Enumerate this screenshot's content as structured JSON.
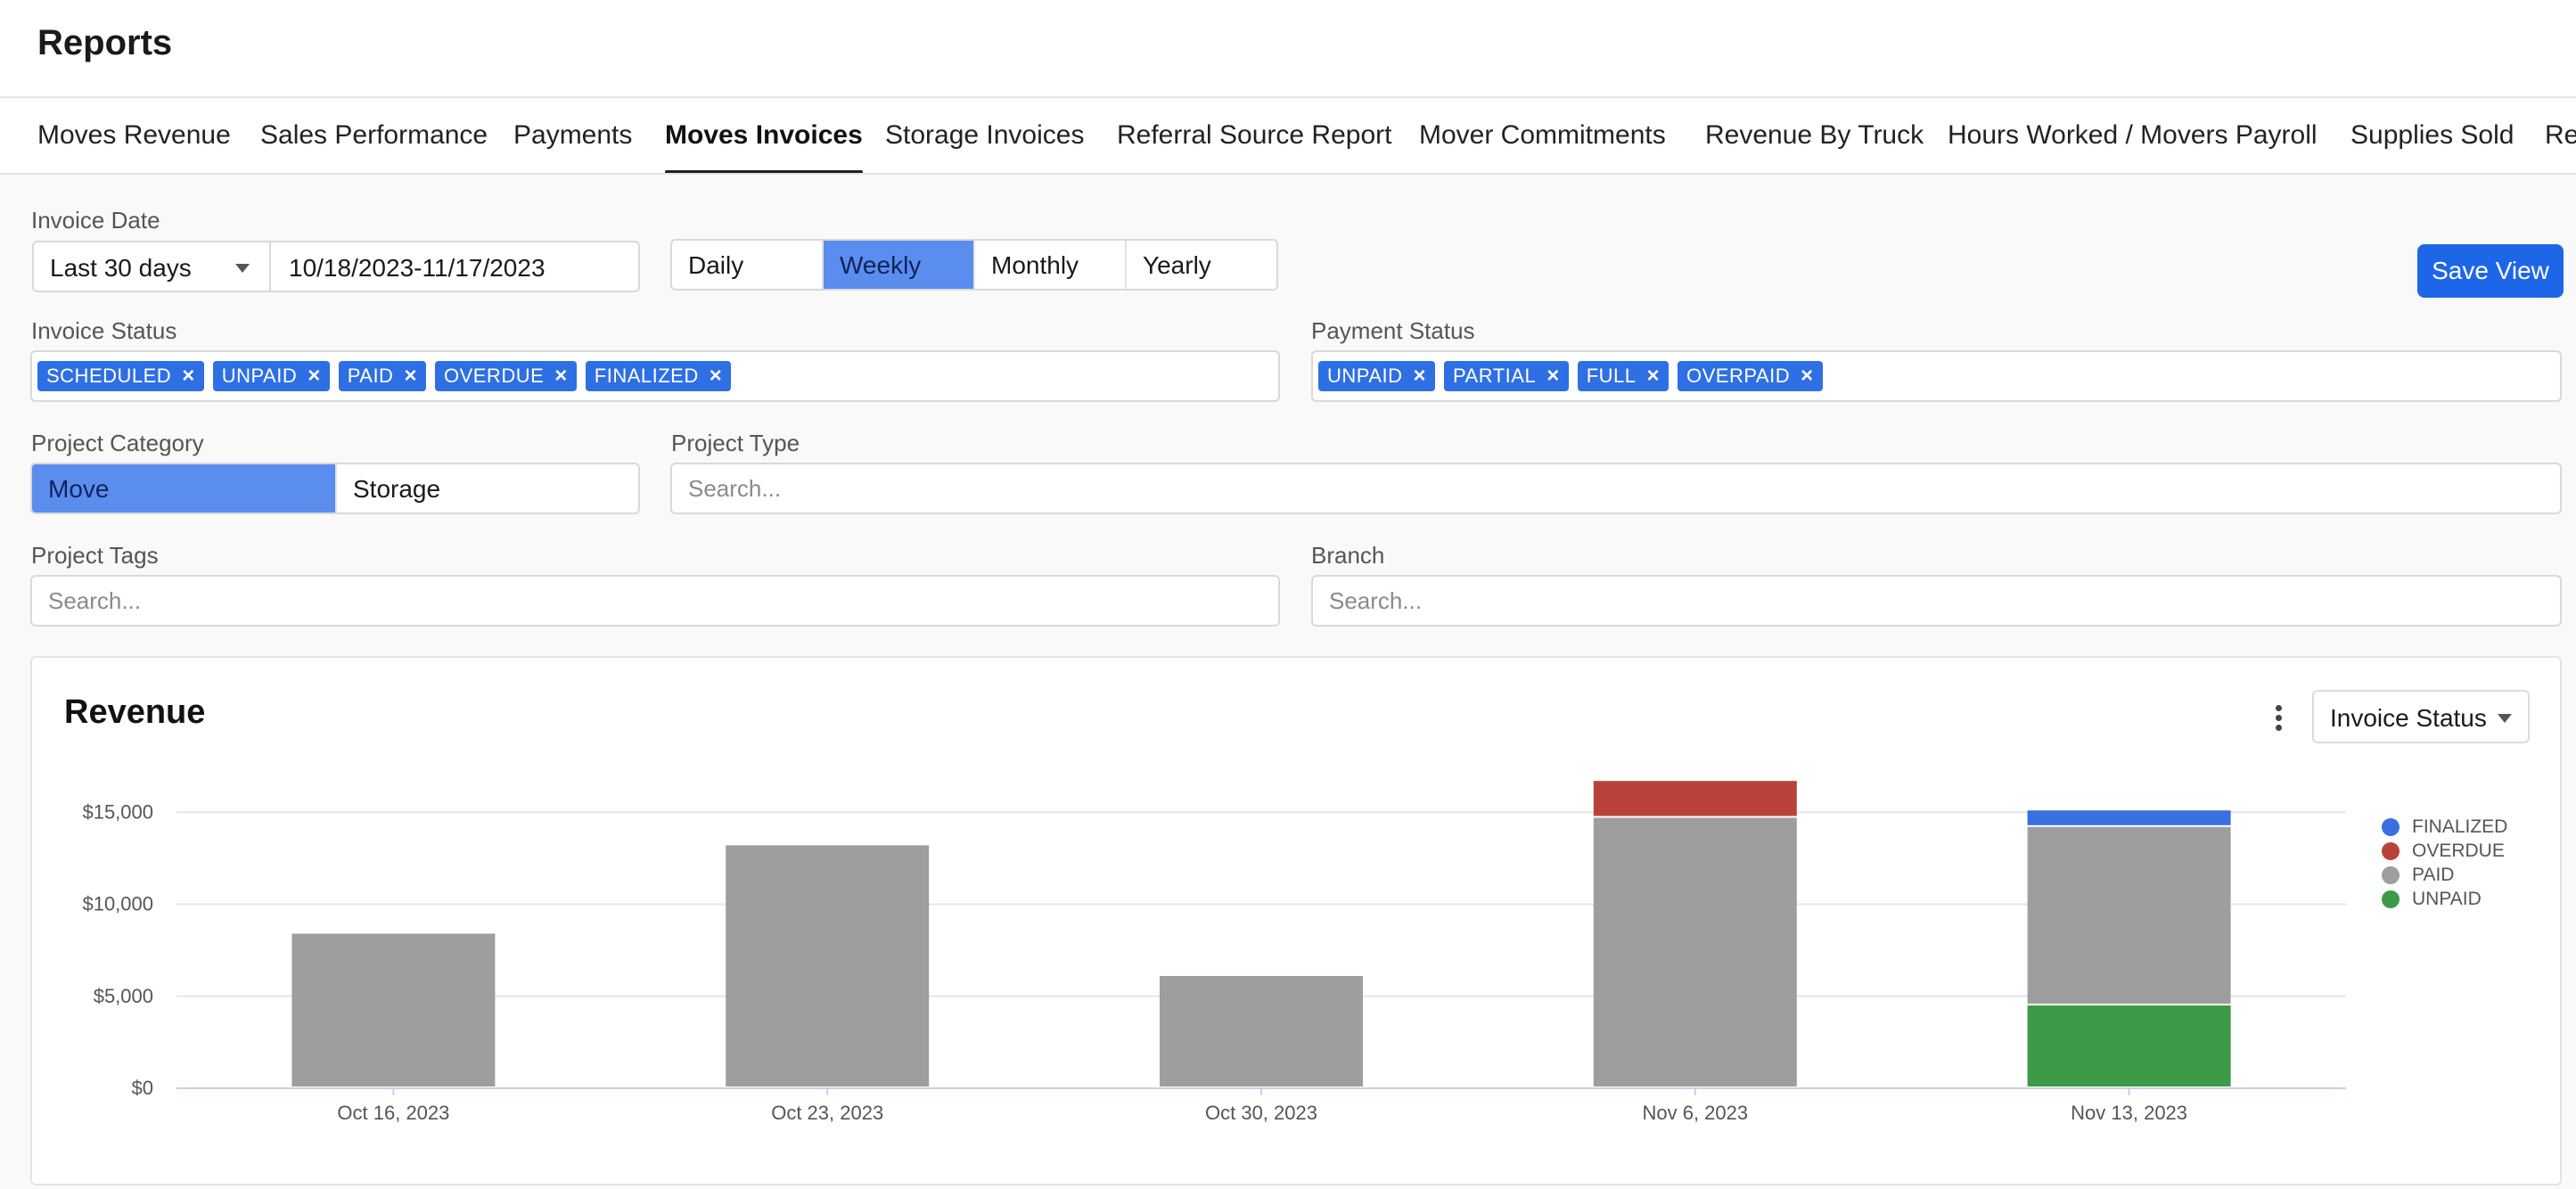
{
  "header": {
    "title": "Reports"
  },
  "tabs": [
    {
      "label": "Moves Revenue",
      "active": false
    },
    {
      "label": "Sales Performance",
      "active": false
    },
    {
      "label": "Payments",
      "active": false
    },
    {
      "label": "Moves Invoices",
      "active": true
    },
    {
      "label": "Storage Invoices",
      "active": false
    },
    {
      "label": "Referral Source Report",
      "active": false
    },
    {
      "label": "Mover Commitments",
      "active": false
    },
    {
      "label": "Revenue By Truck",
      "active": false
    },
    {
      "label": "Hours Worked / Movers Payroll",
      "active": false
    },
    {
      "label": "Supplies Sold",
      "active": false
    },
    {
      "label": "Re",
      "active": false
    }
  ],
  "filters": {
    "invoice_date": {
      "label": "Invoice Date",
      "range_select": "Last 30 days",
      "date_range": "10/18/2023-11/17/2023"
    },
    "period": {
      "options": [
        "Daily",
        "Weekly",
        "Monthly",
        "Yearly"
      ],
      "selected": "Weekly"
    },
    "save_view_label": "Save View",
    "invoice_status": {
      "label": "Invoice Status",
      "chips": [
        "SCHEDULED",
        "UNPAID",
        "PAID",
        "OVERDUE",
        "FINALIZED"
      ]
    },
    "payment_status": {
      "label": "Payment Status",
      "chips": [
        "UNPAID",
        "PARTIAL",
        "FULL",
        "OVERPAID"
      ]
    },
    "project_category": {
      "label": "Project Category",
      "options": [
        "Move",
        "Storage"
      ],
      "selected": "Move"
    },
    "project_type": {
      "label": "Project Type",
      "placeholder": "Search..."
    },
    "project_tags": {
      "label": "Project Tags",
      "placeholder": "Search..."
    },
    "branch": {
      "label": "Branch",
      "placeholder": "Search..."
    }
  },
  "revenue_card": {
    "title": "Revenue",
    "group_by": "Invoice Status",
    "kebab_icon": "more-vertical-icon",
    "caret_icon": "caret-down-icon"
  },
  "chart_data": {
    "type": "bar",
    "stacked": true,
    "categories": [
      "Oct 16, 2023",
      "Oct 23, 2023",
      "Oct 30, 2023",
      "Nov 6, 2023",
      "Nov 13, 2023"
    ],
    "series": [
      {
        "name": "UNPAID",
        "color": "#3d9a46",
        "values": [
          0,
          0,
          0,
          0,
          4500
        ]
      },
      {
        "name": "PAID",
        "color": "#9e9e9e",
        "values": [
          8400,
          13200,
          6100,
          14700,
          9700
        ]
      },
      {
        "name": "OVERDUE",
        "color": "#b9433b",
        "values": [
          0,
          0,
          0,
          2000,
          0
        ]
      },
      {
        "name": "FINALIZED",
        "color": "#3a6fe0",
        "values": [
          0,
          0,
          0,
          0,
          900
        ]
      }
    ],
    "legend_order": [
      "FINALIZED",
      "OVERDUE",
      "PAID",
      "UNPAID"
    ],
    "ylim": [
      0,
      17000
    ],
    "yticks": [
      {
        "value": 0,
        "label": "$0"
      },
      {
        "value": 5000,
        "label": "$5,000"
      },
      {
        "value": 10000,
        "label": "$10,000"
      },
      {
        "value": 15000,
        "label": "$15,000"
      }
    ],
    "grid": true,
    "legend_position": "right",
    "title": "Revenue",
    "xlabel": "",
    "ylabel": ""
  }
}
